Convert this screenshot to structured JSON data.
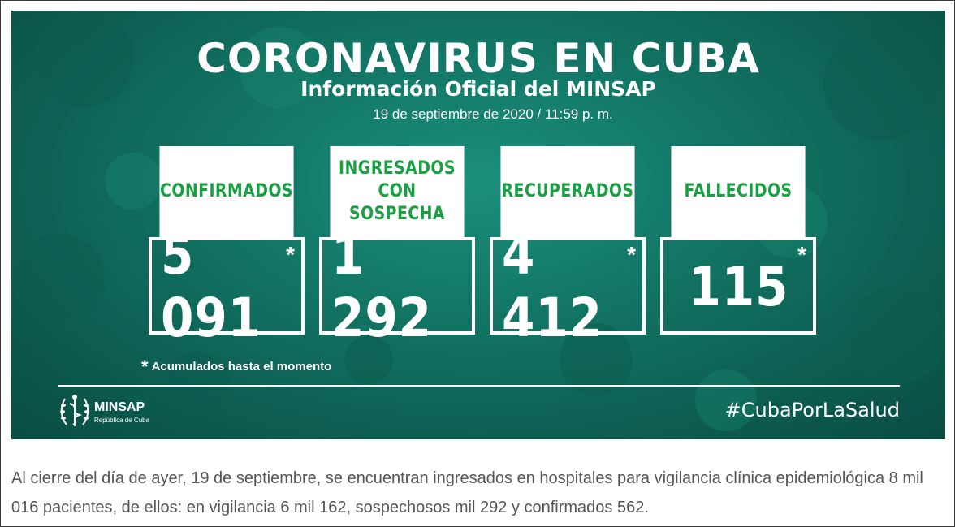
{
  "banner": {
    "title": "CORONAVIRUS EN CUBA",
    "subtitle": "Información Oficial del MINSAP",
    "datetime": "19 de septiembre de 2020 / 11:59 p. m.",
    "cards": [
      {
        "label": "CONFIRMADOS",
        "value": "5 091",
        "star": "*"
      },
      {
        "label": "INGRESADOS CON SOSPECHA",
        "value": "1 292",
        "star": ""
      },
      {
        "label": "RECUPERADOS",
        "value": "4 412",
        "star": "*"
      },
      {
        "label": "FALLECIDOS",
        "value": "115",
        "star": "*"
      }
    ],
    "footnote_star": "*",
    "footnote": "Acumulados hasta el momento",
    "logo_name": "MINSAP",
    "logo_sub": "República de Cuba",
    "hashtag": "#CubaPorLaSalud"
  },
  "caption": "Al cierre del día de ayer, 19 de septiembre, se encuentran ingresados en hospitales para vigilancia clínica epidemiológica 8 mil 016 pacientes, de ellos: en vigilancia 6 mil 162, sospechosos mil 292 y confirmados 562.",
  "colors": {
    "banner_bg": "#137766",
    "label_green": "#1aa043",
    "caption_text": "#555555"
  }
}
